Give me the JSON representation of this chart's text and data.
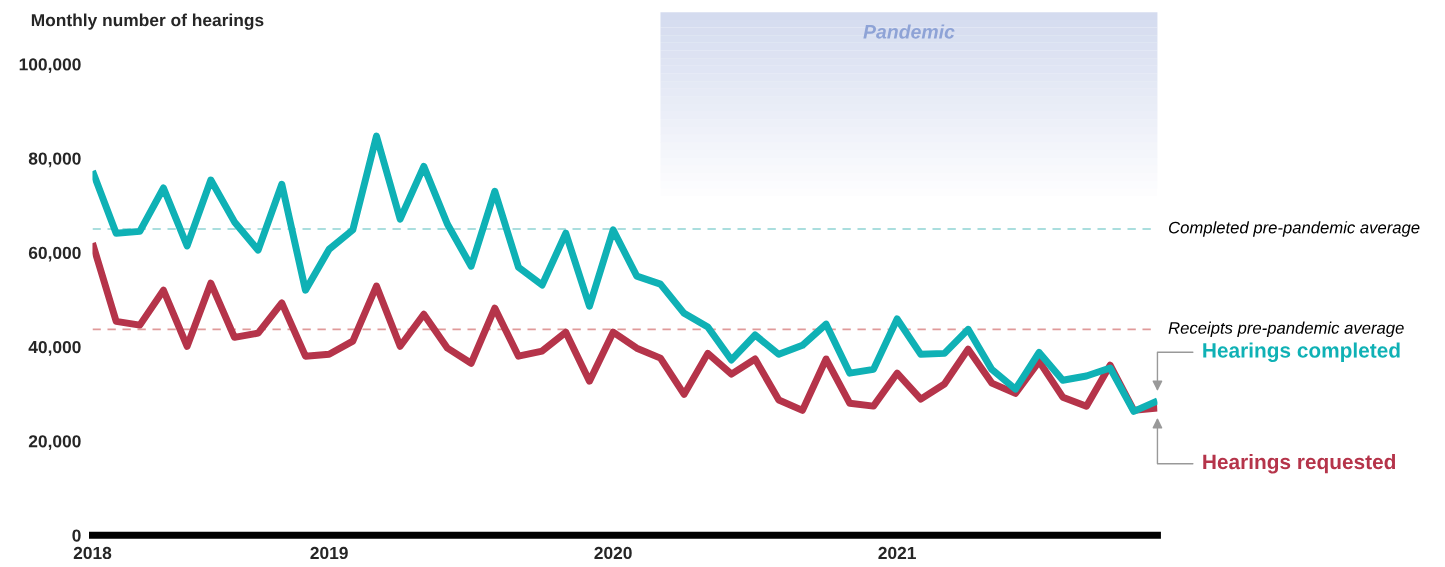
{
  "chart_data": {
    "type": "line",
    "ylabel": "Monthly number of hearings",
    "categories": [
      "2018",
      null,
      null,
      null,
      null,
      null,
      null,
      null,
      null,
      null,
      "2019",
      null,
      null,
      null,
      null,
      null,
      null,
      null,
      null,
      null,
      null,
      null,
      "2020",
      null,
      null,
      null,
      null,
      null,
      null,
      null,
      null,
      null,
      null,
      null,
      "2021",
      null,
      null,
      null,
      null,
      null,
      null,
      null,
      null,
      null,
      null,
      null
    ],
    "ylim": [
      0,
      100000
    ],
    "yticks": [
      0,
      {
        "value": 20000,
        "label": "20,000"
      },
      {
        "value": 40000,
        "label": "40,000"
      },
      {
        "value": 60000,
        "label": "60,000"
      },
      {
        "value": 80000,
        "label": "80,000"
      },
      {
        "value": 100000,
        "label": "100,000"
      }
    ],
    "series": [
      {
        "name": "Hearings completed",
        "color": "#0fb1b5",
        "values": [
          77300,
          64100,
          64500,
          73700,
          61400,
          75400,
          66500,
          60500,
          74500,
          52000,
          60700,
          64800,
          84700,
          67100,
          78300,
          66000,
          57100,
          73000,
          56900,
          53100,
          64100,
          48600,
          64800,
          55000,
          53300,
          47100,
          44200,
          37200,
          42500,
          38400,
          40300,
          44800,
          34400,
          35200,
          45900,
          38400,
          38600,
          43700,
          35200,
          31000,
          38800,
          32900,
          33800,
          35500,
          26300,
          28500
        ]
      },
      {
        "name": "Hearings requested",
        "color": "#b5344a",
        "values": [
          62000,
          45400,
          44600,
          52000,
          40100,
          53500,
          42000,
          42900,
          49300,
          38000,
          38400,
          41200,
          52900,
          40100,
          46900,
          39700,
          36500,
          48200,
          38000,
          39100,
          43100,
          32700,
          43100,
          39700,
          37600,
          29900,
          38600,
          34200,
          37400,
          28700,
          26500,
          37400,
          28000,
          27400,
          34400,
          28900,
          32100,
          39500,
          32300,
          30100,
          36900,
          29300,
          27400,
          36100,
          26500,
          27000
        ]
      }
    ],
    "ref_lines": [
      {
        "axis": "y",
        "value": 65000,
        "label": "Completed pre-pandemic average",
        "color": "#8fd3d3",
        "line_style": "dashed"
      },
      {
        "axis": "y",
        "value": 43700,
        "label": "Receipts pre-pandemic average",
        "color": "#e09a9a",
        "line_style": "dashed"
      }
    ],
    "annotations": [
      "Pandemic"
    ],
    "legend": false,
    "grid": false,
    "marker": "none",
    "line_style": "solid"
  }
}
